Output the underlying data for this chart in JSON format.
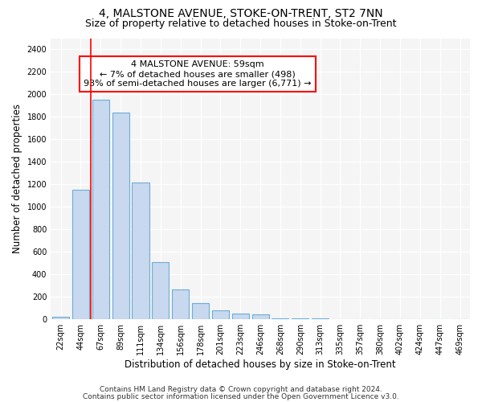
{
  "title": "4, MALSTONE AVENUE, STOKE-ON-TRENT, ST2 7NN",
  "subtitle": "Size of property relative to detached houses in Stoke-on-Trent",
  "xlabel": "Distribution of detached houses by size in Stoke-on-Trent",
  "ylabel": "Number of detached properties",
  "categories": [
    "22sqm",
    "44sqm",
    "67sqm",
    "89sqm",
    "111sqm",
    "134sqm",
    "156sqm",
    "178sqm",
    "201sqm",
    "223sqm",
    "246sqm",
    "268sqm",
    "290sqm",
    "313sqm",
    "335sqm",
    "357sqm",
    "380sqm",
    "402sqm",
    "424sqm",
    "447sqm",
    "469sqm"
  ],
  "values": [
    25,
    1150,
    1950,
    1840,
    1220,
    510,
    265,
    148,
    78,
    50,
    42,
    8,
    8,
    8,
    0,
    0,
    0,
    0,
    0,
    0,
    0
  ],
  "bar_color": "#c8d8ef",
  "bar_edge_color": "#6baed6",
  "property_line_x": 2.0,
  "property_line_color": "red",
  "annotation_text": "4 MALSTONE AVENUE: 59sqm\n← 7% of detached houses are smaller (498)\n93% of semi-detached houses are larger (6,771) →",
  "annotation_box_color": "white",
  "annotation_box_edge_color": "red",
  "ylim": [
    0,
    2500
  ],
  "yticks": [
    0,
    200,
    400,
    600,
    800,
    1000,
    1200,
    1400,
    1600,
    1800,
    2000,
    2200,
    2400
  ],
  "footer1": "Contains HM Land Registry data © Crown copyright and database right 2024.",
  "footer2": "Contains public sector information licensed under the Open Government Licence v3.0.",
  "bg_color": "#ffffff",
  "plot_bg_color": "#f5f5f5",
  "title_fontsize": 10,
  "subtitle_fontsize": 9,
  "axis_label_fontsize": 8.5,
  "tick_fontsize": 7,
  "footer_fontsize": 6.5,
  "annot_fontsize": 8
}
